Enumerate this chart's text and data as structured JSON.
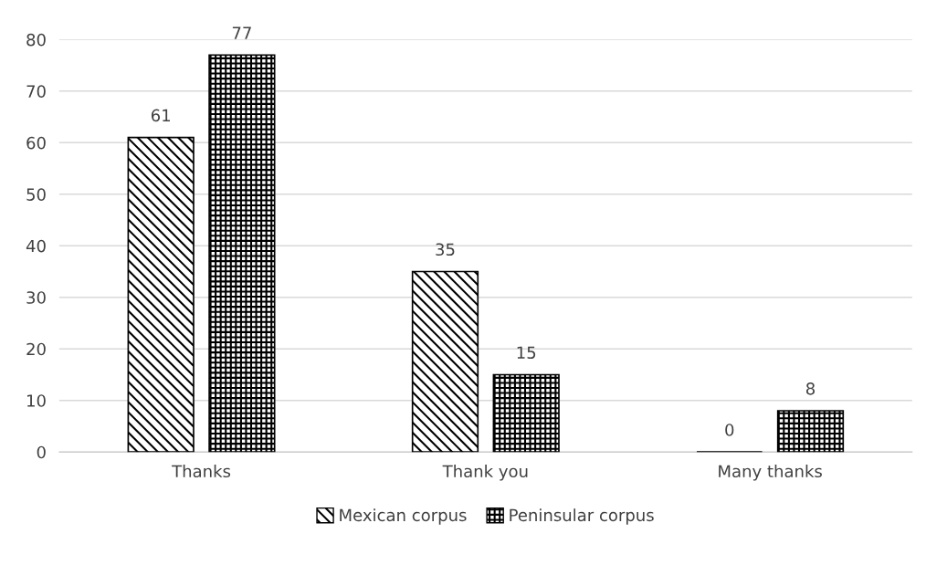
{
  "chart_data": {
    "type": "bar",
    "categories": [
      "Thanks",
      "Thank you",
      "Many thanks"
    ],
    "series": [
      {
        "name": "Mexican corpus",
        "color": "#000000",
        "values": [
          61,
          35,
          0
        ]
      },
      {
        "name": "Peninsular corpus",
        "color": "#000000",
        "values": [
          77,
          15,
          8
        ]
      }
    ],
    "ylim": [
      0,
      80
    ],
    "yticks": [
      0,
      10,
      20,
      30,
      40,
      50,
      60,
      70,
      80
    ],
    "grid": "y",
    "legend": "bottom",
    "data_labels": true
  }
}
